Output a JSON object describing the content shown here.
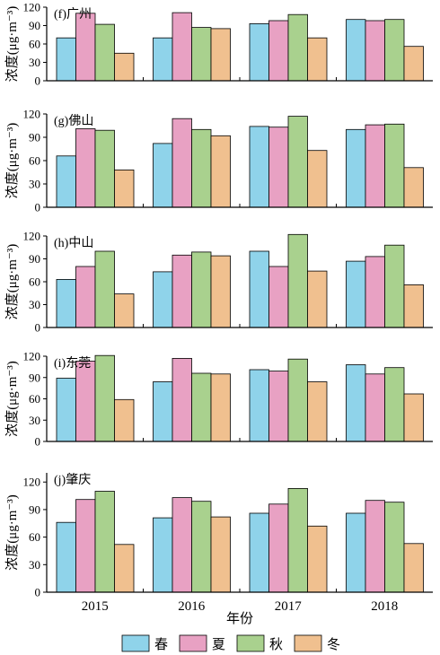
{
  "figure": {
    "xlabel": "年份",
    "ylabel": "浓度(μg·m⁻³)",
    "legend": {
      "placement": "bottom",
      "items": [
        {
          "label": "春",
          "color": "#8fd3ea"
        },
        {
          "label": "夏",
          "color": "#e8a1c3"
        },
        {
          "label": "秋",
          "color": "#a9d18e"
        },
        {
          "label": "冬",
          "color": "#f0c08f"
        }
      ]
    }
  },
  "chart_data": [
    {
      "type": "bar",
      "title": "(f)广州",
      "categories": [
        "2015",
        "2016",
        "2017",
        "2018"
      ],
      "ylabel": "浓度(μg·m⁻³)",
      "ylim": [
        0,
        120
      ],
      "yticks": [
        "0",
        "30",
        "60",
        "90",
        "120"
      ],
      "series": [
        {
          "name": "春",
          "values": [
            70,
            70,
            93,
            100
          ]
        },
        {
          "name": "夏",
          "values": [
            110,
            111,
            98,
            98
          ]
        },
        {
          "name": "秋",
          "values": [
            92,
            87,
            108,
            100
          ]
        },
        {
          "name": "冬",
          "values": [
            45,
            85,
            70,
            56
          ]
        }
      ]
    },
    {
      "type": "bar",
      "title": "(g)佛山",
      "categories": [
        "2015",
        "2016",
        "2017",
        "2018"
      ],
      "ylabel": "浓度(μg·m⁻³)",
      "ylim": [
        0,
        120
      ],
      "yticks": [
        "0",
        "30",
        "60",
        "90",
        "120"
      ],
      "series": [
        {
          "name": "春",
          "values": [
            66,
            82,
            104,
            100
          ]
        },
        {
          "name": "夏",
          "values": [
            101,
            114,
            103,
            106
          ]
        },
        {
          "name": "秋",
          "values": [
            99,
            100,
            117,
            107
          ]
        },
        {
          "name": "冬",
          "values": [
            48,
            92,
            73,
            51
          ]
        }
      ]
    },
    {
      "type": "bar",
      "title": "(h)中山",
      "categories": [
        "2015",
        "2016",
        "2017",
        "2018"
      ],
      "ylabel": "浓度(μg·m⁻³)",
      "ylim": [
        0,
        120
      ],
      "yticks": [
        "0",
        "30",
        "60",
        "90",
        "120"
      ],
      "series": [
        {
          "name": "春",
          "values": [
            63,
            73,
            100,
            87
          ]
        },
        {
          "name": "夏",
          "values": [
            80,
            95,
            80,
            93
          ]
        },
        {
          "name": "秋",
          "values": [
            100,
            99,
            122,
            108
          ]
        },
        {
          "name": "冬",
          "values": [
            44,
            94,
            74,
            56
          ]
        }
      ]
    },
    {
      "type": "bar",
      "title": "(i)东莞",
      "categories": [
        "2015",
        "2016",
        "2017",
        "2018"
      ],
      "ylabel": "浓度(μg·m⁻³)",
      "ylim": [
        0,
        120
      ],
      "yticks": [
        "0",
        "30",
        "60",
        "90",
        "120"
      ],
      "series": [
        {
          "name": "春",
          "values": [
            89,
            84,
            101,
            108
          ]
        },
        {
          "name": "夏",
          "values": [
            113,
            117,
            99,
            95
          ]
        },
        {
          "name": "秋",
          "values": [
            121,
            96,
            116,
            104
          ]
        },
        {
          "name": "冬",
          "values": [
            59,
            95,
            84,
            67
          ]
        }
      ]
    },
    {
      "type": "bar",
      "title": "(j)肇庆",
      "categories": [
        "2015",
        "2016",
        "2017",
        "2018"
      ],
      "ylabel": "浓度(μg·m⁻³)",
      "ylim": [
        0,
        130
      ],
      "yticks": [
        "0",
        "30",
        "60",
        "90",
        "120"
      ],
      "series": [
        {
          "name": "春",
          "values": [
            76,
            81,
            86,
            86
          ]
        },
        {
          "name": "夏",
          "values": [
            101,
            103,
            96,
            100
          ]
        },
        {
          "name": "秋",
          "values": [
            110,
            99,
            113,
            98
          ]
        },
        {
          "name": "冬",
          "values": [
            52,
            82,
            72,
            53
          ]
        }
      ]
    }
  ]
}
